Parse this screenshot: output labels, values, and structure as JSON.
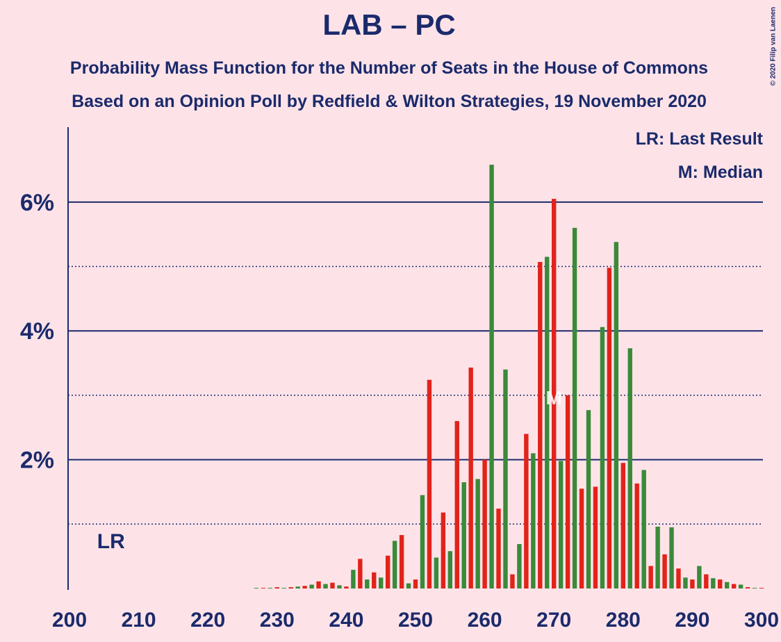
{
  "chart_data": {
    "type": "bar",
    "title": "LAB – PC",
    "subtitle": "Probability Mass Function for the Number of Seats in the House of Commons",
    "subtitle2": "Based on an Opinion Poll by Redfield & Wilton Strategies, 19 November 2020",
    "copyright": "© 2020 Filip van Laenen",
    "legend": [
      "LR: Last Result",
      "M: Median"
    ],
    "last_result": {
      "label": "LR",
      "x": 206
    },
    "median": {
      "label": "M",
      "x": 270
    },
    "bar_colors": [
      "#e2231a",
      "#3a8a3a"
    ],
    "x": [
      200,
      201,
      202,
      203,
      204,
      205,
      206,
      207,
      208,
      209,
      210,
      211,
      212,
      213,
      214,
      215,
      216,
      217,
      218,
      219,
      220,
      221,
      222,
      223,
      224,
      225,
      226,
      227,
      228,
      229,
      230,
      231,
      232,
      233,
      234,
      235,
      236,
      237,
      238,
      239,
      240,
      241,
      242,
      243,
      244,
      245,
      246,
      247,
      248,
      249,
      250,
      251,
      252,
      253,
      254,
      255,
      256,
      257,
      258,
      259,
      260,
      261,
      262,
      263,
      264,
      265,
      266,
      267,
      268,
      269,
      270,
      271,
      272,
      273,
      274,
      275,
      276,
      277,
      278,
      279,
      280,
      281,
      282,
      283,
      284,
      285,
      286,
      287,
      288,
      289,
      290,
      291,
      292,
      293,
      294,
      295,
      296,
      297,
      298,
      299,
      300
    ],
    "values": [
      0,
      0,
      0,
      0,
      0,
      0,
      0,
      0,
      0,
      0,
      0,
      0,
      0,
      0,
      0,
      0,
      0,
      0,
      0,
      0,
      0,
      0,
      0,
      0,
      0,
      0,
      0,
      0.01,
      0.01,
      0.01,
      0.02,
      0.01,
      0.02,
      0.03,
      0.04,
      0.06,
      0.11,
      0.07,
      0.09,
      0.05,
      0.03,
      0.29,
      0.46,
      0.14,
      0.25,
      0.17,
      0.51,
      0.74,
      0.83,
      0.08,
      0.14,
      1.45,
      3.24,
      0.48,
      1.18,
      0.58,
      2.6,
      1.65,
      3.43,
      1.7,
      2.0,
      6.58,
      1.24,
      3.4,
      0.22,
      0.69,
      2.4,
      2.1,
      5.07,
      5.15,
      6.05,
      1.98,
      3.0,
      5.6,
      1.55,
      2.77,
      1.58,
      4.06,
      4.98,
      5.38,
      1.95,
      3.73,
      1.63,
      1.84,
      0.35,
      0.96,
      0.53,
      0.95,
      0.31,
      0.17,
      0.14,
      0.35,
      0.22,
      0.16,
      0.14,
      0.1,
      0.07,
      0.06,
      0.02,
      0.01,
      0.01
    ],
    "xlim": [
      200,
      300
    ],
    "xticks": [
      200,
      210,
      220,
      230,
      240,
      250,
      260,
      270,
      280,
      290,
      300
    ],
    "ylim": [
      0,
      7.12
    ],
    "yticks": [
      {
        "value": 2,
        "label": "2%"
      },
      {
        "value": 4,
        "label": "4%"
      },
      {
        "value": 6,
        "label": "6%"
      }
    ],
    "minor_grid": [
      1,
      3,
      5
    ]
  }
}
